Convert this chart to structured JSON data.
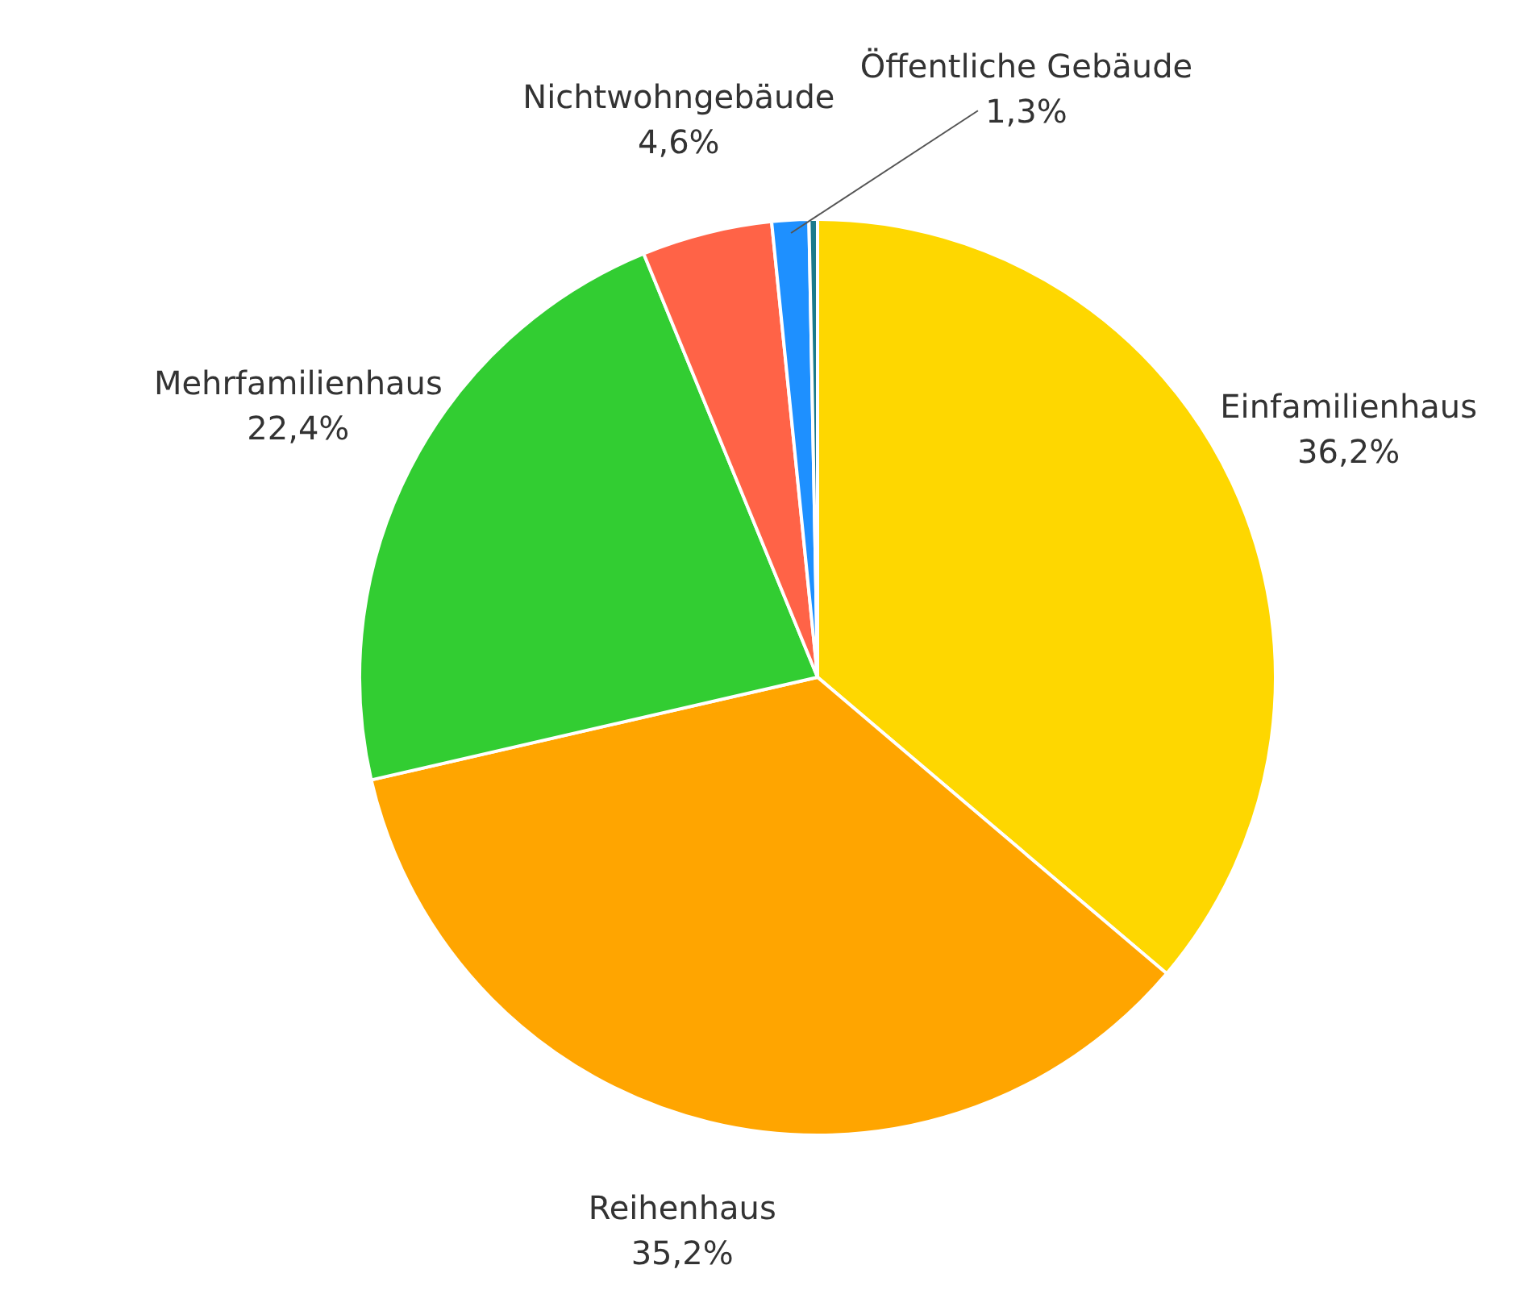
{
  "chart_data": {
    "type": "pie",
    "categories": [
      "Einfamilienhaus",
      "Reihenhaus",
      "Mehrfamilienhaus",
      "Nichtwohngebäude",
      "Öffentliche Gebäude",
      null
    ],
    "values": [
      36.2,
      35.2,
      22.4,
      4.6,
      1.3,
      0.3
    ],
    "value_labels": [
      "36,2%",
      "35,2%",
      "22,4%",
      "4,6%",
      "1,3%",
      null
    ],
    "colors": [
      "#fed700",
      "#ffa500",
      "#32cd32",
      "#ff6347",
      "#1e90ff",
      "#1b7a8c"
    ],
    "legend": false
  }
}
